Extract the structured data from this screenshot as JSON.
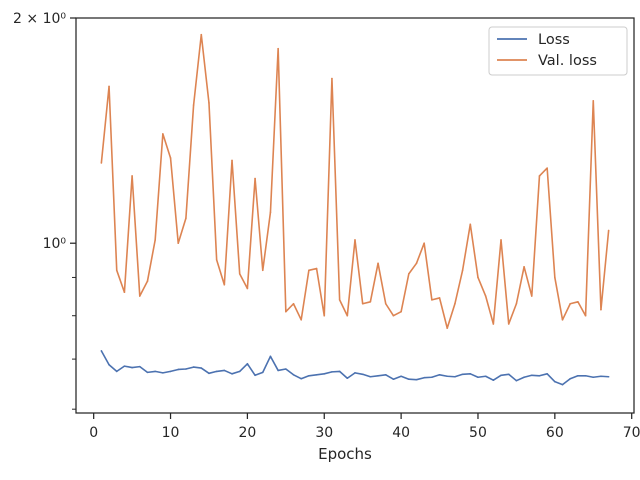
{
  "chart_data": {
    "type": "line",
    "xlabel": "Epochs",
    "ylabel": "",
    "xlim": [
      -2.3,
      70.3
    ],
    "ylim": [
      0.593,
      2.0
    ],
    "yscale": "log",
    "grid": false,
    "legend_position": "top-right",
    "x_ticks": [
      0,
      10,
      20,
      30,
      40,
      50,
      60,
      70
    ],
    "x_tick_labels": [
      "0",
      "10",
      "20",
      "30",
      "40",
      "50",
      "60",
      "70"
    ],
    "y_major_ticks": [
      1.0,
      2.0
    ],
    "y_tick_labels": [
      "10⁰",
      "2 × 10⁰"
    ],
    "y_minor_ticks": [
      0.6,
      0.7,
      0.8,
      0.9
    ],
    "series": [
      {
        "name": "Loss",
        "color": "#4c72b0",
        "x": [
          1,
          2,
          3,
          4,
          5,
          6,
          7,
          8,
          9,
          10,
          11,
          12,
          13,
          14,
          15,
          16,
          17,
          18,
          19,
          20,
          21,
          22,
          23,
          24,
          25,
          26,
          27,
          28,
          29,
          30,
          31,
          32,
          33,
          34,
          35,
          36,
          37,
          38,
          39,
          40,
          41,
          42,
          43,
          44,
          45,
          46,
          47,
          48,
          49,
          50,
          51,
          52,
          53,
          54,
          55,
          56,
          57,
          58,
          59,
          60,
          61,
          62,
          63,
          64,
          65,
          66,
          67
        ],
        "values": [
          0.718,
          0.688,
          0.674,
          0.685,
          0.682,
          0.684,
          0.672,
          0.674,
          0.671,
          0.674,
          0.678,
          0.679,
          0.683,
          0.681,
          0.67,
          0.674,
          0.676,
          0.669,
          0.674,
          0.69,
          0.666,
          0.672,
          0.706,
          0.676,
          0.679,
          0.667,
          0.659,
          0.665,
          0.667,
          0.669,
          0.673,
          0.674,
          0.66,
          0.671,
          0.668,
          0.663,
          0.665,
          0.667,
          0.658,
          0.664,
          0.658,
          0.657,
          0.661,
          0.662,
          0.667,
          0.664,
          0.663,
          0.668,
          0.669,
          0.662,
          0.664,
          0.656,
          0.666,
          0.668,
          0.655,
          0.662,
          0.666,
          0.665,
          0.669,
          0.653,
          0.647,
          0.659,
          0.665,
          0.665,
          0.662,
          0.664,
          0.663
        ]
      },
      {
        "name": "Val. loss",
        "color": "#dd8452",
        "x": [
          1,
          2,
          3,
          4,
          5,
          6,
          7,
          8,
          9,
          10,
          11,
          12,
          13,
          14,
          15,
          16,
          17,
          18,
          19,
          20,
          21,
          22,
          23,
          24,
          25,
          26,
          27,
          28,
          29,
          30,
          31,
          32,
          33,
          34,
          35,
          36,
          37,
          38,
          39,
          40,
          41,
          42,
          43,
          44,
          45,
          46,
          47,
          48,
          49,
          50,
          51,
          52,
          53,
          54,
          55,
          56,
          57,
          58,
          59,
          60,
          61,
          62,
          63,
          64,
          65,
          66,
          67
        ],
        "values": [
          1.28,
          1.62,
          0.92,
          0.86,
          1.23,
          0.85,
          0.89,
          1.01,
          1.4,
          1.3,
          1.0,
          1.08,
          1.53,
          1.9,
          1.54,
          0.95,
          0.88,
          1.29,
          0.91,
          0.87,
          1.22,
          0.92,
          1.1,
          1.82,
          0.81,
          0.83,
          0.79,
          0.92,
          0.925,
          0.8,
          1.66,
          0.84,
          0.8,
          1.01,
          0.83,
          0.835,
          0.94,
          0.83,
          0.8,
          0.81,
          0.91,
          0.94,
          1.0,
          0.84,
          0.845,
          0.77,
          0.83,
          0.92,
          1.06,
          0.9,
          0.85,
          0.78,
          1.01,
          0.78,
          0.83,
          0.93,
          0.85,
          1.23,
          1.26,
          0.9,
          0.79,
          0.83,
          0.835,
          0.8,
          1.55,
          0.815,
          1.04
        ]
      }
    ]
  }
}
